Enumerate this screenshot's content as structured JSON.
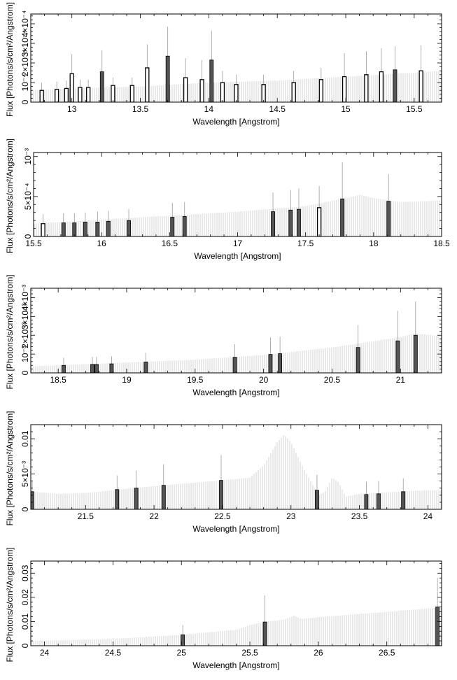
{
  "chart_data": [
    {
      "type": "bar",
      "xlabel": "Wavelength [Angstrom]",
      "ylabel": "Flux [Photons/s/cm²/Angstrom]",
      "xlim": [
        12.7,
        15.7
      ],
      "ylim": [
        0,
        0.00045
      ],
      "xticks": [
        13,
        13.5,
        14,
        14.5,
        15,
        15.5
      ],
      "xtick_labels": [
        "13",
        "13.5",
        "14",
        "14.5",
        "15",
        "15.5"
      ],
      "yticks": [
        0,
        0.0001,
        0.0002,
        0.0003,
        0.0004
      ],
      "ytick_labels": [
        "0",
        "10⁻⁴",
        "2×10⁻⁴",
        "3×10⁻⁴",
        "4×10⁻⁴"
      ],
      "model": {
        "x": [
          12.7,
          13.0,
          13.5,
          14.0,
          14.5,
          15.0,
          15.5,
          15.7
        ],
        "y": [
          6e-05,
          7e-05,
          8e-05,
          0.0001,
          0.00011,
          0.00013,
          0.00015,
          0.00016
        ]
      },
      "points": [
        {
          "x": 12.78,
          "y": 6e-05,
          "err": 4e-05,
          "style": "open"
        },
        {
          "x": 12.89,
          "y": 6.5e-05,
          "err": 4e-05,
          "style": "open"
        },
        {
          "x": 12.96,
          "y": 7e-05,
          "err": 4e-05,
          "style": "open"
        },
        {
          "x": 13.0,
          "y": 0.000145,
          "err": 0.0001,
          "style": "open"
        },
        {
          "x": 13.06,
          "y": 7.5e-05,
          "err": 4e-05,
          "style": "open"
        },
        {
          "x": 13.12,
          "y": 7.5e-05,
          "err": 4e-05,
          "style": "open"
        },
        {
          "x": 13.22,
          "y": 0.000155,
          "err": 0.00011,
          "style": "filled"
        },
        {
          "x": 13.3,
          "y": 8.5e-05,
          "err": 4e-05,
          "style": "open"
        },
        {
          "x": 13.44,
          "y": 8.5e-05,
          "err": 4e-05,
          "style": "open"
        },
        {
          "x": 13.55,
          "y": 0.000175,
          "err": 0.00012,
          "style": "open"
        },
        {
          "x": 13.7,
          "y": 0.000235,
          "err": 0.00015,
          "style": "filled"
        },
        {
          "x": 13.83,
          "y": 0.000125,
          "err": 0.0001,
          "style": "open"
        },
        {
          "x": 13.95,
          "y": 0.000115,
          "err": 0.0001,
          "style": "open"
        },
        {
          "x": 14.02,
          "y": 0.000215,
          "err": 0.00015,
          "style": "filled"
        },
        {
          "x": 14.1,
          "y": 0.0001,
          "err": 6e-05,
          "style": "open"
        },
        {
          "x": 14.2,
          "y": 9e-05,
          "err": 5e-05,
          "style": "open"
        },
        {
          "x": 14.4,
          "y": 9e-05,
          "err": 5e-05,
          "style": "open"
        },
        {
          "x": 14.62,
          "y": 0.0001,
          "err": 6e-05,
          "style": "open"
        },
        {
          "x": 14.82,
          "y": 0.000115,
          "err": 6e-05,
          "style": "open"
        },
        {
          "x": 14.99,
          "y": 0.00013,
          "err": 0.00012,
          "style": "open"
        },
        {
          "x": 15.15,
          "y": 0.00014,
          "err": 0.00012,
          "style": "open"
        },
        {
          "x": 15.26,
          "y": 0.000155,
          "err": 0.00012,
          "style": "open"
        },
        {
          "x": 15.36,
          "y": 0.000165,
          "err": 0.00012,
          "style": "filled"
        },
        {
          "x": 15.55,
          "y": 0.00016,
          "err": 0.00013,
          "style": "open"
        }
      ]
    },
    {
      "type": "bar",
      "xlabel": "Wavelength [Angstrom]",
      "ylabel": "Flux [Photons/s/cm²/Angstrom]",
      "xlim": [
        15.5,
        18.5
      ],
      "ylim": [
        0,
        0.00105
      ],
      "xticks": [
        15.5,
        16,
        16.5,
        17,
        17.5,
        18,
        18.5
      ],
      "xtick_labels": [
        "15.5",
        "16",
        "16.5",
        "17",
        "17.5",
        "18",
        "18.5"
      ],
      "yticks": [
        0,
        0.0005,
        0.001
      ],
      "ytick_labels": [
        "0",
        "5×10⁻⁴",
        "10⁻³"
      ],
      "model": {
        "x": [
          15.5,
          16.0,
          16.5,
          17.0,
          17.5,
          17.8,
          17.9,
          18.0,
          18.2,
          18.5
        ],
        "y": [
          0.00016,
          0.00021,
          0.00026,
          0.00031,
          0.00038,
          0.00048,
          0.00052,
          0.00048,
          0.00043,
          0.00045
        ]
      },
      "points": [
        {
          "x": 15.57,
          "y": 0.00016,
          "err": 0.00012,
          "style": "open"
        },
        {
          "x": 15.72,
          "y": 0.00017,
          "err": 0.00012,
          "style": "filled"
        },
        {
          "x": 15.8,
          "y": 0.00017,
          "err": 0.00012,
          "style": "filled"
        },
        {
          "x": 15.88,
          "y": 0.00018,
          "err": 0.00012,
          "style": "filled"
        },
        {
          "x": 15.97,
          "y": 0.00018,
          "err": 0.00013,
          "style": "filled"
        },
        {
          "x": 16.05,
          "y": 0.00019,
          "err": 0.00013,
          "style": "filled"
        },
        {
          "x": 16.2,
          "y": 0.0002,
          "err": 0.00014,
          "style": "filled"
        },
        {
          "x": 16.52,
          "y": 0.00024,
          "err": 0.00018,
          "style": "filled"
        },
        {
          "x": 16.61,
          "y": 0.00025,
          "err": 0.00018,
          "style": "filled"
        },
        {
          "x": 17.26,
          "y": 0.00031,
          "err": 0.00024,
          "style": "filled"
        },
        {
          "x": 17.39,
          "y": 0.00033,
          "err": 0.00025,
          "style": "filled"
        },
        {
          "x": 17.45,
          "y": 0.00034,
          "err": 0.00026,
          "style": "filled"
        },
        {
          "x": 17.6,
          "y": 0.00036,
          "err": 0.00027,
          "style": "open"
        },
        {
          "x": 17.77,
          "y": 0.00047,
          "err": 0.00046,
          "style": "filled"
        },
        {
          "x": 18.11,
          "y": 0.00044,
          "err": 0.00034,
          "style": "filled"
        }
      ]
    },
    {
      "type": "bar",
      "xlabel": "Wavelength [Angstrom]",
      "ylabel": "Flux [Photons/s/cm²/Angstrom]",
      "xlim": [
        18.3,
        21.3
      ],
      "ylim": [
        0,
        0.0045
      ],
      "xticks": [
        18.5,
        19,
        19.5,
        20,
        20.5,
        21
      ],
      "xtick_labels": [
        "18.5",
        "19",
        "19.5",
        "20",
        "20.5",
        "21"
      ],
      "yticks": [
        0,
        0.001,
        0.002,
        0.003,
        0.004
      ],
      "ytick_labels": [
        "0",
        "10⁻³",
        "2×10⁻³",
        "3×10⁻³",
        "4×10⁻³"
      ],
      "model": {
        "x": [
          18.3,
          18.5,
          19.0,
          19.5,
          20.0,
          20.5,
          21.0,
          21.1,
          21.3
        ],
        "y": [
          0.00035,
          0.0004,
          0.00055,
          0.0007,
          0.00095,
          0.00135,
          0.0019,
          0.0021,
          0.00195
        ]
      },
      "points": [
        {
          "x": 18.54,
          "y": 0.0004,
          "err": 0.0004,
          "style": "filled"
        },
        {
          "x": 18.75,
          "y": 0.00045,
          "err": 0.0004,
          "style": "filled"
        },
        {
          "x": 18.78,
          "y": 0.00045,
          "err": 0.0004,
          "style": "filled"
        },
        {
          "x": 18.89,
          "y": 0.00048,
          "err": 0.0004,
          "style": "filled"
        },
        {
          "x": 19.14,
          "y": 0.00058,
          "err": 0.0005,
          "style": "filled"
        },
        {
          "x": 19.79,
          "y": 0.00083,
          "err": 0.0007,
          "style": "filled"
        },
        {
          "x": 20.05,
          "y": 0.00098,
          "err": 0.0009,
          "style": "filled"
        },
        {
          "x": 20.12,
          "y": 0.00102,
          "err": 0.0009,
          "style": "filled"
        },
        {
          "x": 20.69,
          "y": 0.00135,
          "err": 0.0012,
          "style": "filled"
        },
        {
          "x": 20.98,
          "y": 0.0017,
          "err": 0.0016,
          "style": "filled"
        },
        {
          "x": 21.11,
          "y": 0.002,
          "err": 0.0018,
          "style": "filled"
        }
      ]
    },
    {
      "type": "bar",
      "xlabel": "Wavelength [Angstrom]",
      "ylabel": "Flux [Photons/s/cm²/Angstrom]",
      "xlim": [
        21.1,
        24.1
      ],
      "ylim": [
        0,
        0.012
      ],
      "xticks": [
        21.5,
        22,
        22.5,
        23,
        23.5,
        24
      ],
      "xtick_labels": [
        "21.5",
        "22",
        "22.5",
        "23",
        "23.5",
        "24"
      ],
      "yticks": [
        0,
        0.005,
        0.01
      ],
      "ytick_labels": [
        "0",
        "5×10⁻³",
        "0.01"
      ],
      "model": {
        "x": [
          21.1,
          21.3,
          21.5,
          22.0,
          22.5,
          22.7,
          22.8,
          22.9,
          22.95,
          23.0,
          23.1,
          23.2,
          23.25,
          23.3,
          23.35,
          23.4,
          23.5,
          24.0,
          24.1
        ],
        "y": [
          0.0025,
          0.0022,
          0.0023,
          0.0033,
          0.0041,
          0.0045,
          0.0062,
          0.0095,
          0.0106,
          0.0095,
          0.0055,
          0.002,
          0.0025,
          0.0045,
          0.0038,
          0.0018,
          0.0022,
          0.0027,
          0.0027
        ]
      },
      "points": [
        {
          "x": 21.11,
          "y": 0.0025,
          "err": 0.0015,
          "style": "filled"
        },
        {
          "x": 21.73,
          "y": 0.0028,
          "err": 0.002,
          "style": "filled"
        },
        {
          "x": 21.87,
          "y": 0.003,
          "err": 0.0025,
          "style": "filled"
        },
        {
          "x": 22.07,
          "y": 0.0034,
          "err": 0.003,
          "style": "filled"
        },
        {
          "x": 22.49,
          "y": 0.0041,
          "err": 0.0036,
          "style": "filled"
        },
        {
          "x": 23.19,
          "y": 0.0027,
          "err": 0.0022,
          "style": "filled"
        },
        {
          "x": 23.55,
          "y": 0.0021,
          "err": 0.0018,
          "style": "filled"
        },
        {
          "x": 23.64,
          "y": 0.0022,
          "err": 0.0018,
          "style": "filled"
        },
        {
          "x": 23.82,
          "y": 0.0025,
          "err": 0.0019,
          "style": "filled"
        }
      ]
    },
    {
      "type": "bar",
      "xlabel": "Wavelength [Angstrom]",
      "ylabel": "Flux [Photons/s/cm²/Angstrom]",
      "xlim": [
        23.9,
        26.9
      ],
      "ylim": [
        0,
        0.035
      ],
      "xticks": [
        24,
        24.5,
        25,
        25.5,
        26,
        26.5
      ],
      "xtick_labels": [
        "24",
        "24.5",
        "25",
        "25.5",
        "26",
        "26.5"
      ],
      "yticks": [
        0,
        0.01,
        0.02,
        0.03
      ],
      "ytick_labels": [
        "0",
        "0.01",
        "0.02",
        "0.03"
      ],
      "model": {
        "x": [
          23.9,
          24.5,
          25.0,
          25.4,
          25.5,
          25.6,
          25.75,
          25.82,
          25.88,
          25.9,
          26.0,
          26.5,
          26.9
        ],
        "y": [
          0.002,
          0.0028,
          0.0045,
          0.0066,
          0.0085,
          0.0098,
          0.0108,
          0.0124,
          0.011,
          0.0112,
          0.0118,
          0.014,
          0.0158
        ]
      },
      "points": [
        {
          "x": 25.01,
          "y": 0.0045,
          "err": 0.004,
          "style": "filled"
        },
        {
          "x": 25.61,
          "y": 0.0098,
          "err": 0.011,
          "style": "filled"
        },
        {
          "x": 26.87,
          "y": 0.016,
          "err": 0.012,
          "style": "filled"
        }
      ]
    }
  ]
}
